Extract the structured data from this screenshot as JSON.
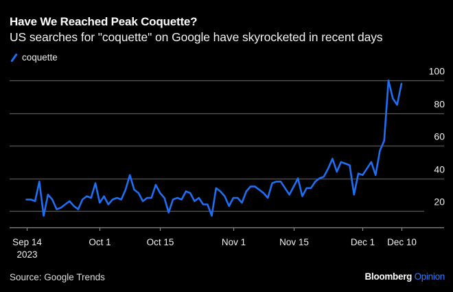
{
  "header": {
    "title": "Have We Reached Peak Coquette?",
    "subtitle": "US searches for \"coquette\" on Google have skyrocketed in recent days"
  },
  "footer": {
    "source": "Source: Google Trends",
    "brand_main": "Bloomberg",
    "brand_accent": "Opinion"
  },
  "colors": {
    "background": "#000000",
    "line": "#1f6ff5",
    "grid": "#5a5a5a",
    "brand_accent": "#2f7bf5"
  },
  "chart_data": {
    "type": "line",
    "title": "Have We Reached Peak Coquette?",
    "subtitle": "US searches for \"coquette\" on Google have skyrocketed in recent days",
    "xlabel": "",
    "ylabel": "",
    "x_start": "2023-09-14",
    "x_end": "2023-12-10",
    "x_unit": "day",
    "ylim": [
      0,
      100
    ],
    "yticks": [
      20,
      40,
      60,
      80,
      100
    ],
    "ytick_labels": [
      "20",
      "40",
      "60",
      "80",
      "100"
    ],
    "yaxis_side": "right",
    "grid": true,
    "xticks": [
      {
        "day": 0,
        "label": "Sep 14",
        "sublabel": "2023"
      },
      {
        "day": 17,
        "label": "Oct 1",
        "sublabel": ""
      },
      {
        "day": 31,
        "label": "Oct 15",
        "sublabel": ""
      },
      {
        "day": 48,
        "label": "Nov 1",
        "sublabel": ""
      },
      {
        "day": 62,
        "label": "Nov 15",
        "sublabel": ""
      },
      {
        "day": 78,
        "label": "Dec 1",
        "sublabel": ""
      },
      {
        "day": 87,
        "label": "Dec 10",
        "sublabel": ""
      }
    ],
    "legend": {
      "position": "top-left",
      "entries": [
        "coquette"
      ]
    },
    "series": [
      {
        "name": "coquette",
        "values": [
          27,
          27,
          26,
          38,
          17,
          30,
          27,
          21,
          22,
          24,
          26,
          23,
          21,
          27,
          29,
          28,
          37,
          25,
          29,
          24,
          27,
          28,
          27,
          33,
          42,
          33,
          31,
          26,
          28,
          28,
          36,
          31,
          28,
          19,
          27,
          28,
          27,
          32,
          31,
          26,
          28,
          24,
          24,
          17,
          34,
          32,
          29,
          23,
          28,
          28,
          25,
          32,
          35,
          35,
          33,
          31,
          28,
          37,
          38,
          38,
          34,
          30,
          35,
          40,
          29,
          34,
          34,
          38,
          40,
          41,
          46,
          52,
          44,
          50,
          49,
          48,
          30,
          43,
          42,
          46,
          50,
          42,
          57,
          63,
          100,
          89,
          85,
          98
        ]
      }
    ]
  }
}
